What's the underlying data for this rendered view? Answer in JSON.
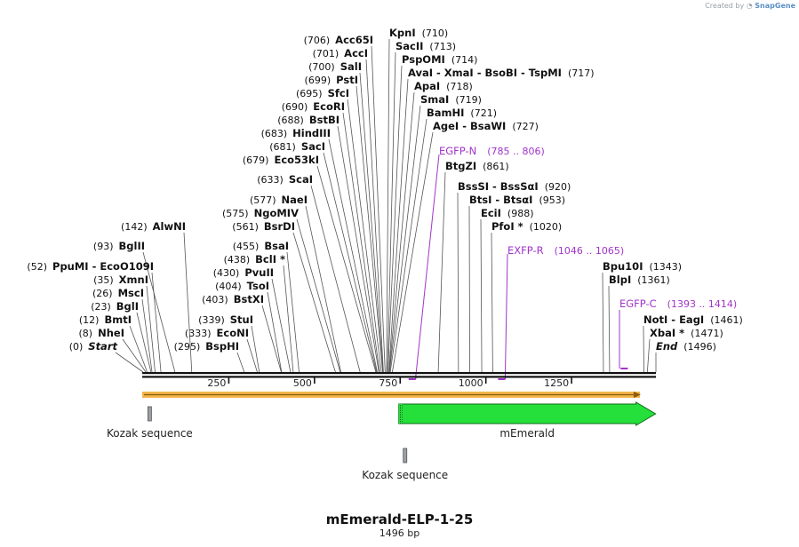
{
  "credit": {
    "prefix": "Created by",
    "brand": "SnapGene"
  },
  "title": "mEmerald-ELP-1-25",
  "length_label": "1496 bp",
  "sequence_length": 1496,
  "ticks": [
    "250",
    "500",
    "750",
    "1000",
    "1250"
  ],
  "ticks_values": [
    250,
    500,
    750,
    1000,
    1250
  ],
  "enzymes": [
    {
      "side": "left",
      "name": "Acc65I",
      "pos": "(706)"
    },
    {
      "side": "left",
      "name": "AccI",
      "pos": "(701)"
    },
    {
      "side": "left",
      "name": "SalI",
      "pos": "(700)"
    },
    {
      "side": "left",
      "name": "PstI",
      "pos": "(699)"
    },
    {
      "side": "left",
      "name": "SfcI",
      "pos": "(695)"
    },
    {
      "side": "left",
      "name": "EcoRI",
      "pos": "(690)"
    },
    {
      "side": "left",
      "name": "BstBI",
      "pos": "(688)"
    },
    {
      "side": "left",
      "name": "HindIII",
      "pos": "(683)"
    },
    {
      "side": "left",
      "name": "SacI",
      "pos": "(681)"
    },
    {
      "side": "left",
      "name": "Eco53kI",
      "pos": "(679)"
    },
    {
      "side": "left",
      "name": "ScaI",
      "pos": "(633)"
    },
    {
      "side": "left",
      "name": "NaeI",
      "pos": "(577)"
    },
    {
      "side": "left",
      "name": "NgoMIV",
      "pos": "(575)"
    },
    {
      "side": "left",
      "name": "BsrDI",
      "pos": "(561)"
    },
    {
      "side": "left",
      "name": "AlwNI",
      "pos": "(142)"
    },
    {
      "side": "left",
      "name": "BsaI",
      "pos": "(455)"
    },
    {
      "side": "left",
      "name": "BglII",
      "pos": "(93)"
    },
    {
      "side": "left",
      "name": "BclI *",
      "pos": "(438)"
    },
    {
      "side": "left",
      "name": "PpuMI  -  EcoO109I",
      "pos": "(52)"
    },
    {
      "side": "left",
      "name": "PvuII",
      "pos": "(430)"
    },
    {
      "side": "left",
      "name": "XmnI",
      "pos": "(35)"
    },
    {
      "side": "left",
      "name": "TsoI",
      "pos": "(404)"
    },
    {
      "side": "left",
      "name": "MscI",
      "pos": "(26)"
    },
    {
      "side": "left",
      "name": "BstXI",
      "pos": "(403)"
    },
    {
      "side": "left",
      "name": "BglI",
      "pos": "(23)"
    },
    {
      "side": "left",
      "name": "BmtI",
      "pos": "(12)"
    },
    {
      "side": "left",
      "name": "StuI",
      "pos": "(339)"
    },
    {
      "side": "left",
      "name": "NheI",
      "pos": "(8)"
    },
    {
      "side": "left",
      "name": "EcoNI",
      "pos": "(333)"
    },
    {
      "side": "left",
      "name": "Start",
      "pos": "(0)"
    },
    {
      "side": "left",
      "name": "BspHI",
      "pos": "(295)"
    },
    {
      "side": "right",
      "name": "KpnI",
      "pos": "(710)"
    },
    {
      "side": "right",
      "name": "SacII",
      "pos": "(713)"
    },
    {
      "side": "right",
      "name": "PspOMI",
      "pos": "(714)"
    },
    {
      "side": "right",
      "name": "AvaI  -  XmaI  -  BsoBI  -  TspMI",
      "pos": "(717)"
    },
    {
      "side": "right",
      "name": "ApaI",
      "pos": "(718)"
    },
    {
      "side": "right",
      "name": "SmaI",
      "pos": "(719)"
    },
    {
      "side": "right",
      "name": "BamHI",
      "pos": "(721)"
    },
    {
      "side": "right",
      "name": "AgeI  -  BsaWI",
      "pos": "(727)"
    },
    {
      "side": "right",
      "name": "BtgZI",
      "pos": "(861)"
    },
    {
      "side": "right",
      "name": "BssSI  -  BssSαI",
      "pos": "(920)"
    },
    {
      "side": "right",
      "name": "BtsI  -  BtsαI",
      "pos": "(953)"
    },
    {
      "side": "right",
      "name": "EciI",
      "pos": "(988)"
    },
    {
      "side": "right",
      "name": "PfoI *",
      "pos": "(1020)"
    },
    {
      "side": "right",
      "name": "Bpu10I",
      "pos": "(1343)"
    },
    {
      "side": "right",
      "name": "BlpI",
      "pos": "(1361)"
    },
    {
      "side": "right",
      "name": "NotI  -  EagI",
      "pos": "(1461)"
    },
    {
      "side": "right",
      "name": "XbaI *",
      "pos": "(1471)"
    },
    {
      "side": "right",
      "name": "End",
      "pos": "(1496)"
    }
  ],
  "primers": [
    {
      "name": "EGFP-N",
      "range": "(785 .. 806)",
      "start": 785,
      "end": 806,
      "strand": "reverse"
    },
    {
      "name": "EXFP-R",
      "range": "(1046 .. 1065)",
      "start": 1046,
      "end": 1065,
      "strand": "reverse"
    },
    {
      "name": "EGFP-C",
      "range": "(1393 .. 1414)",
      "start": 1393,
      "end": 1414,
      "strand": "forward"
    }
  ],
  "features": [
    {
      "name": "Kozak sequence",
      "start": 1,
      "end": 10,
      "color": "#9aa0a6"
    },
    {
      "name": "mEmerald",
      "start": 746,
      "end": 1495,
      "color": "#25e03a",
      "strand": "forward"
    },
    {
      "name": "Kozak sequence",
      "start": 746,
      "end": 755,
      "color": "#9aa0a6"
    }
  ],
  "orf": {
    "start": 1,
    "end": 1496,
    "color": "#f2b54a"
  },
  "colors": {
    "primer": "#a134c9",
    "backbone": "#111111",
    "feature_green": "#25e03a",
    "orf": "#f2b54a"
  }
}
